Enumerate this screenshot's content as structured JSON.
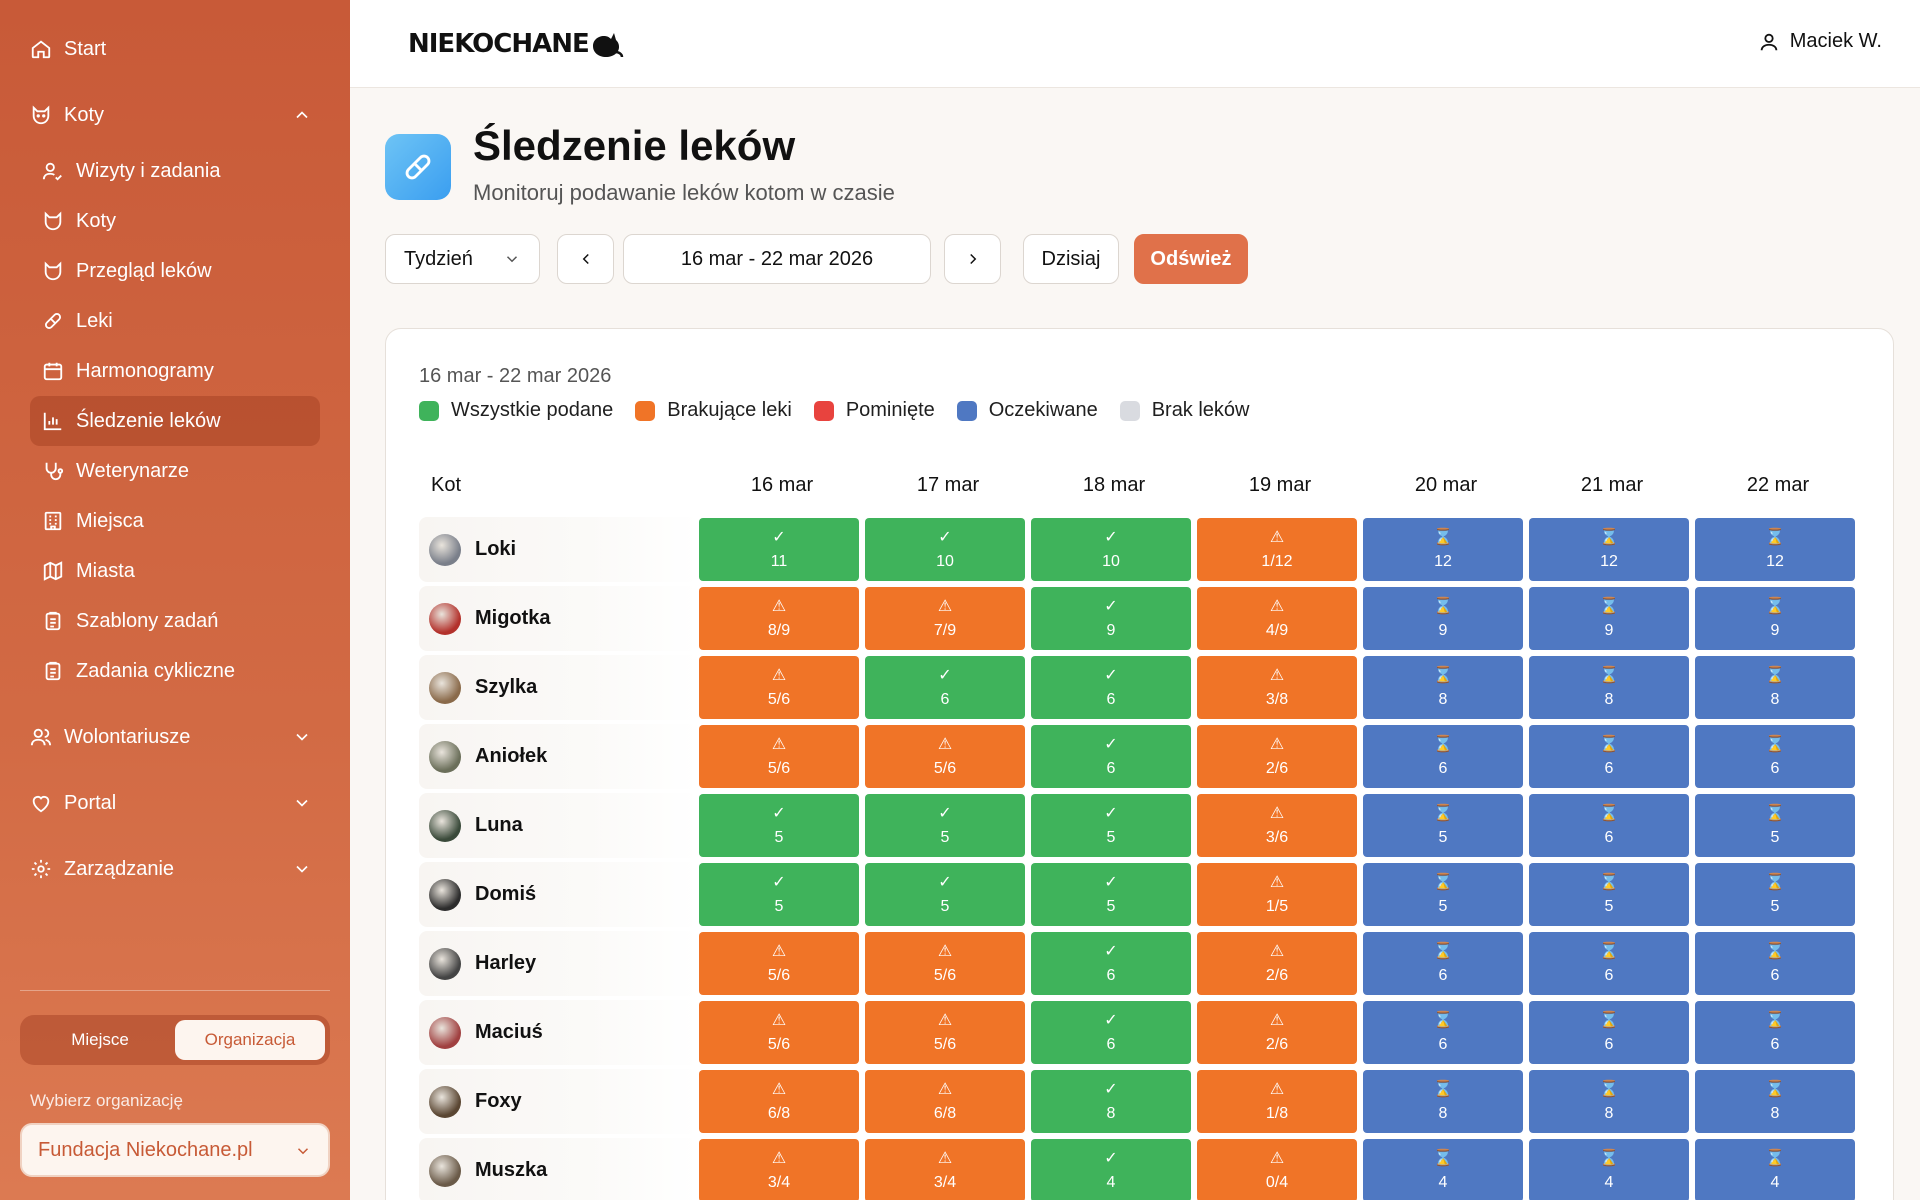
{
  "sidebar": {
    "start": "Start",
    "koty_section": "Koty",
    "koty_items": [
      {
        "label": "Wizyty i zadania",
        "icon": "user-check-icon"
      },
      {
        "label": "Koty",
        "icon": "cat-icon"
      },
      {
        "label": "Przegląd leków",
        "icon": "cat-icon"
      },
      {
        "label": "Leki",
        "icon": "pill-icon"
      },
      {
        "label": "Harmonogramy",
        "icon": "calendar-icon"
      },
      {
        "label": "Śledzenie leków",
        "icon": "bar-chart-icon"
      },
      {
        "label": "Weterynarze",
        "icon": "stethoscope-icon"
      },
      {
        "label": "Miejsca",
        "icon": "building-icon"
      },
      {
        "label": "Miasta",
        "icon": "map-icon"
      },
      {
        "label": "Szablony zadań",
        "icon": "clipboard-icon"
      },
      {
        "label": "Zadania cykliczne",
        "icon": "clipboard-icon"
      }
    ],
    "wolontariusze": "Wolontariusze",
    "portal": "Portal",
    "zarzadzanie": "Zarządzanie",
    "segment": {
      "left": "Miejsce",
      "right": "Organizacja"
    },
    "org_label": "Wybierz organizację",
    "org_value": "Fundacja Niekochane.pl"
  },
  "header": {
    "logo": "NIEKOCHANE",
    "user": "Maciek W."
  },
  "page": {
    "title": "Śledzenie leków",
    "subtitle": "Monitoruj podawanie leków kotom w czasie"
  },
  "toolbar": {
    "period": "Tydzień",
    "range": "16 mar - 22 mar 2026",
    "today": "Dzisiaj",
    "refresh": "Odśwież"
  },
  "card": {
    "range_label": "16 mar - 22 mar 2026",
    "legend": [
      {
        "label": "Wszystkie podane",
        "color": "#3fb35b"
      },
      {
        "label": "Brakujące leki",
        "color": "#f07427"
      },
      {
        "label": "Pominięte",
        "color": "#e8433e"
      },
      {
        "label": "Oczekiwane",
        "color": "#4f78c2"
      },
      {
        "label": "Brak leków",
        "color": "#d9dbe0"
      }
    ],
    "column_cat": "Kot",
    "days": [
      "16 mar",
      "17 mar",
      "18 mar",
      "19 mar",
      "20 mar",
      "21 mar",
      "22 mar"
    ]
  },
  "status_colors": {
    "ok": "#3fb35b",
    "missing": "#f07427",
    "pending": "#4f78c2"
  },
  "status_symbols": {
    "ok": "✓",
    "missing": "⚠",
    "pending": "⌛"
  },
  "rows": [
    {
      "name": "Loki",
      "cells": [
        [
          "ok",
          "11"
        ],
        [
          "ok",
          "10"
        ],
        [
          "ok",
          "10"
        ],
        [
          "missing",
          "1/12"
        ],
        [
          "pending",
          "12"
        ],
        [
          "pending",
          "12"
        ],
        [
          "pending",
          "12"
        ]
      ]
    },
    {
      "name": "Migotka",
      "cells": [
        [
          "missing",
          "8/9"
        ],
        [
          "missing",
          "7/9"
        ],
        [
          "ok",
          "9"
        ],
        [
          "missing",
          "4/9"
        ],
        [
          "pending",
          "9"
        ],
        [
          "pending",
          "9"
        ],
        [
          "pending",
          "9"
        ]
      ]
    },
    {
      "name": "Szylka",
      "cells": [
        [
          "missing",
          "5/6"
        ],
        [
          "ok",
          "6"
        ],
        [
          "ok",
          "6"
        ],
        [
          "missing",
          "3/8"
        ],
        [
          "pending",
          "8"
        ],
        [
          "pending",
          "8"
        ],
        [
          "pending",
          "8"
        ]
      ]
    },
    {
      "name": "Aniołek",
      "cells": [
        [
          "missing",
          "5/6"
        ],
        [
          "missing",
          "5/6"
        ],
        [
          "ok",
          "6"
        ],
        [
          "missing",
          "2/6"
        ],
        [
          "pending",
          "6"
        ],
        [
          "pending",
          "6"
        ],
        [
          "pending",
          "6"
        ]
      ]
    },
    {
      "name": "Luna",
      "cells": [
        [
          "ok",
          "5"
        ],
        [
          "ok",
          "5"
        ],
        [
          "ok",
          "5"
        ],
        [
          "missing",
          "3/6"
        ],
        [
          "pending",
          "5"
        ],
        [
          "pending",
          "6"
        ],
        [
          "pending",
          "5"
        ]
      ]
    },
    {
      "name": "Domiś",
      "cells": [
        [
          "ok",
          "5"
        ],
        [
          "ok",
          "5"
        ],
        [
          "ok",
          "5"
        ],
        [
          "missing",
          "1/5"
        ],
        [
          "pending",
          "5"
        ],
        [
          "pending",
          "5"
        ],
        [
          "pending",
          "5"
        ]
      ]
    },
    {
      "name": "Harley",
      "cells": [
        [
          "missing",
          "5/6"
        ],
        [
          "missing",
          "5/6"
        ],
        [
          "ok",
          "6"
        ],
        [
          "missing",
          "2/6"
        ],
        [
          "pending",
          "6"
        ],
        [
          "pending",
          "6"
        ],
        [
          "pending",
          "6"
        ]
      ]
    },
    {
      "name": "Maciuś",
      "cells": [
        [
          "missing",
          "5/6"
        ],
        [
          "missing",
          "5/6"
        ],
        [
          "ok",
          "6"
        ],
        [
          "missing",
          "2/6"
        ],
        [
          "pending",
          "6"
        ],
        [
          "pending",
          "6"
        ],
        [
          "pending",
          "6"
        ]
      ]
    },
    {
      "name": "Foxy",
      "cells": [
        [
          "missing",
          "6/8"
        ],
        [
          "missing",
          "6/8"
        ],
        [
          "ok",
          "8"
        ],
        [
          "missing",
          "1/8"
        ],
        [
          "pending",
          "8"
        ],
        [
          "pending",
          "8"
        ],
        [
          "pending",
          "8"
        ]
      ]
    },
    {
      "name": "Muszka",
      "cells": [
        [
          "missing",
          "3/4"
        ],
        [
          "missing",
          "3/4"
        ],
        [
          "ok",
          "4"
        ],
        [
          "missing",
          "0/4"
        ],
        [
          "pending",
          "4"
        ],
        [
          "pending",
          "4"
        ],
        [
          "pending",
          "4"
        ]
      ]
    }
  ]
}
